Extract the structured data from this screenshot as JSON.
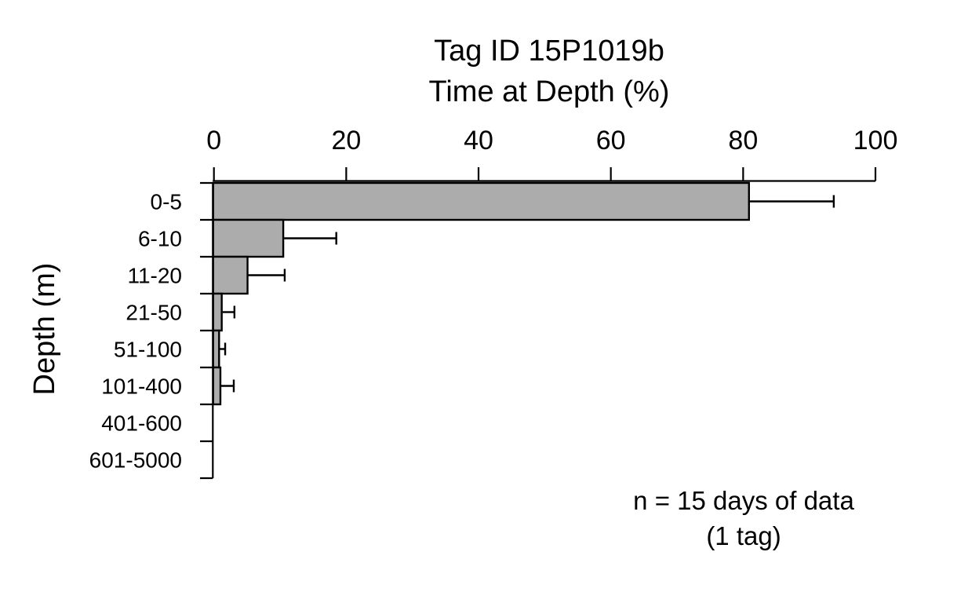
{
  "chart_data": {
    "type": "bar",
    "orientation": "horizontal",
    "title": "Tag ID 15P1019b",
    "subtitle": "Time at Depth (%)",
    "xlabel": "",
    "ylabel": "Depth (m)",
    "categories": [
      "0-5",
      "6-10",
      "11-20",
      "21-50",
      "51-100",
      "101-400",
      "401-600",
      "601-5000"
    ],
    "values": [
      81,
      10.6,
      5.2,
      1.3,
      0.9,
      1.1,
      0,
      0
    ],
    "error_upper": [
      93.7,
      18.5,
      10.7,
      3.1,
      1.7,
      3.0,
      0,
      0
    ],
    "x_ticks": [
      "0",
      "20",
      "40",
      "60",
      "80",
      "100"
    ],
    "x_tick_values": [
      0,
      20,
      40,
      60,
      80,
      100
    ],
    "xlim": [
      0,
      100
    ],
    "grid": "off",
    "legend": "none",
    "bar_fill_color": "#acacac",
    "bar_border_color": "#000000",
    "axis_color": "#000000",
    "annotation_line1": "n = 15 days of data",
    "annotation_line2": "(1 tag)"
  }
}
